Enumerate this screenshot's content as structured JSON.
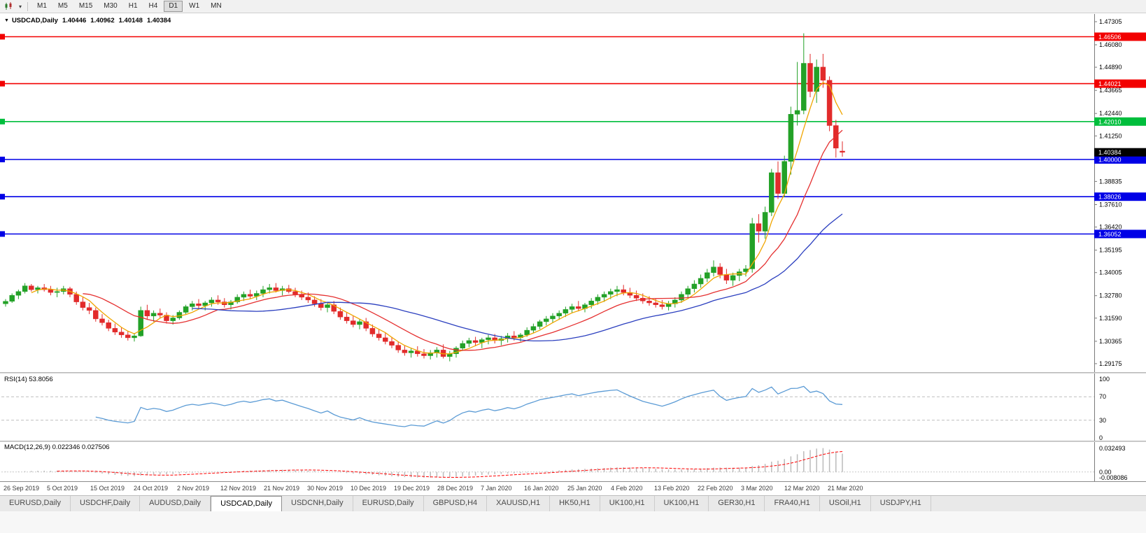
{
  "toolbar": {
    "chart_type_icon": "candles",
    "dropdown_icon": "▾",
    "timeframes": [
      "M1",
      "M5",
      "M15",
      "M30",
      "H1",
      "H4",
      "D1",
      "W1",
      "MN"
    ],
    "active_timeframe": "D1"
  },
  "chart": {
    "menu_icon": "▼",
    "title": "USDCAD,Daily",
    "open": "1.40446",
    "high": "1.40962",
    "low": "1.40148",
    "close": "1.40384",
    "axis_labels": [
      "1.47305",
      "1.46080",
      "1.44890",
      "1.43665",
      "1.42440",
      "1.41250",
      "1.38835",
      "1.37610",
      "1.36420",
      "1.35195",
      "1.34005",
      "1.32780",
      "1.31590",
      "1.30365",
      "1.29175"
    ],
    "hlines": [
      {
        "price": 1.46506,
        "label": "1.46506",
        "color": "#F20000"
      },
      {
        "price": 1.44021,
        "label": "1.44021",
        "color": "#F20000"
      },
      {
        "price": 1.4201,
        "label": "1.42010",
        "color": "#00BE3C"
      },
      {
        "price": 1.4,
        "label": "1.40000",
        "color": "#0000E6"
      },
      {
        "price": 1.38026,
        "label": "1.38026",
        "color": "#0000E6"
      },
      {
        "price": 1.36052,
        "label": "1.36052",
        "color": "#0000E6"
      }
    ],
    "current_price": {
      "value": 1.40384,
      "label": "1.40384",
      "bg": "#000000"
    }
  },
  "chart_data": {
    "type": "candlestick",
    "symbol": "USDCAD",
    "timeframe": "Daily",
    "y_range": [
      1.2873,
      1.4772
    ],
    "colors": {
      "up": "#23A127",
      "down": "#E22B2B"
    },
    "overlays": [
      {
        "name": "ma-fast",
        "period": 5,
        "color": "#F0A500"
      },
      {
        "name": "ma-mid",
        "period": 13,
        "color": "#E53030"
      },
      {
        "name": "ma-slow",
        "period": 30,
        "color": "#2B3FBF"
      }
    ],
    "x_labels": [
      "26 Sep 2019",
      "5 Oct 2019",
      "15 Oct 2019",
      "24 Oct 2019",
      "2 Nov 2019",
      "12 Nov 2019",
      "21 Nov 2019",
      "30 Nov 2019",
      "10 Dec 2019",
      "19 Dec 2019",
      "28 Dec 2019",
      "7 Jan 2020",
      "16 Jan 2020",
      "25 Jan 2020",
      "4 Feb 2020",
      "13 Feb 2020",
      "22 Feb 2020",
      "3 Mar 2020",
      "12 Mar 2020",
      "21 Mar 2020"
    ],
    "candles": [
      [
        1.3235,
        1.326,
        1.322,
        1.3248
      ],
      [
        1.3248,
        1.329,
        1.324,
        1.328
      ],
      [
        1.328,
        1.331,
        1.326,
        1.33
      ],
      [
        1.33,
        1.3345,
        1.329,
        1.333
      ],
      [
        1.333,
        1.334,
        1.33,
        1.331
      ],
      [
        1.331,
        1.333,
        1.329,
        1.332
      ],
      [
        1.332,
        1.334,
        1.33,
        1.331
      ],
      [
        1.331,
        1.333,
        1.328,
        1.3295
      ],
      [
        1.3295,
        1.332,
        1.327,
        1.33
      ],
      [
        1.33,
        1.333,
        1.3285,
        1.3315
      ],
      [
        1.3315,
        1.3325,
        1.327,
        1.3285
      ],
      [
        1.3285,
        1.33,
        1.323,
        1.3245
      ],
      [
        1.3245,
        1.327,
        1.32,
        1.3215
      ],
      [
        1.3215,
        1.324,
        1.318,
        1.32
      ],
      [
        1.32,
        1.3215,
        1.314,
        1.3155
      ],
      [
        1.3155,
        1.318,
        1.312,
        1.3135
      ],
      [
        1.3135,
        1.315,
        1.309,
        1.3105
      ],
      [
        1.3105,
        1.313,
        1.307,
        1.3085
      ],
      [
        1.3085,
        1.311,
        1.3055,
        1.307
      ],
      [
        1.307,
        1.309,
        1.304,
        1.3055
      ],
      [
        1.3055,
        1.308,
        1.3035,
        1.3065
      ],
      [
        1.3065,
        1.322,
        1.306,
        1.32
      ],
      [
        1.32,
        1.323,
        1.315,
        1.317
      ],
      [
        1.317,
        1.32,
        1.314,
        1.3185
      ],
      [
        1.3185,
        1.321,
        1.316,
        1.3175
      ],
      [
        1.3175,
        1.319,
        1.313,
        1.3145
      ],
      [
        1.3145,
        1.3175,
        1.3125,
        1.316
      ],
      [
        1.316,
        1.32,
        1.315,
        1.319
      ],
      [
        1.319,
        1.323,
        1.318,
        1.322
      ],
      [
        1.322,
        1.325,
        1.32,
        1.3235
      ],
      [
        1.3235,
        1.326,
        1.321,
        1.3225
      ],
      [
        1.3225,
        1.325,
        1.32,
        1.324
      ],
      [
        1.324,
        1.327,
        1.322,
        1.3255
      ],
      [
        1.3255,
        1.328,
        1.323,
        1.3245
      ],
      [
        1.3245,
        1.3265,
        1.3215,
        1.323
      ],
      [
        1.323,
        1.3255,
        1.3205,
        1.3245
      ],
      [
        1.3245,
        1.3285,
        1.3235,
        1.327
      ],
      [
        1.327,
        1.33,
        1.325,
        1.3285
      ],
      [
        1.3285,
        1.331,
        1.326,
        1.3275
      ],
      [
        1.3275,
        1.3305,
        1.3255,
        1.329
      ],
      [
        1.329,
        1.333,
        1.327,
        1.331
      ],
      [
        1.331,
        1.334,
        1.329,
        1.332
      ],
      [
        1.332,
        1.3345,
        1.3295,
        1.3305
      ],
      [
        1.3305,
        1.333,
        1.328,
        1.3315
      ],
      [
        1.3315,
        1.3335,
        1.329,
        1.33
      ],
      [
        1.33,
        1.332,
        1.327,
        1.3285
      ],
      [
        1.3285,
        1.3305,
        1.3255,
        1.327
      ],
      [
        1.327,
        1.3295,
        1.324,
        1.3255
      ],
      [
        1.3255,
        1.3275,
        1.322,
        1.3235
      ],
      [
        1.3235,
        1.326,
        1.32,
        1.3215
      ],
      [
        1.3215,
        1.3245,
        1.319,
        1.323
      ],
      [
        1.323,
        1.325,
        1.318,
        1.3195
      ],
      [
        1.3195,
        1.3215,
        1.315,
        1.3165
      ],
      [
        1.3165,
        1.319,
        1.313,
        1.3145
      ],
      [
        1.3145,
        1.317,
        1.311,
        1.3125
      ],
      [
        1.3125,
        1.3155,
        1.31,
        1.314
      ],
      [
        1.314,
        1.316,
        1.309,
        1.3105
      ],
      [
        1.3105,
        1.3125,
        1.306,
        1.3075
      ],
      [
        1.3075,
        1.31,
        1.304,
        1.3055
      ],
      [
        1.3055,
        1.308,
        1.302,
        1.3035
      ],
      [
        1.3035,
        1.306,
        1.3,
        1.3015
      ],
      [
        1.3015,
        1.3035,
        1.2975,
        1.299
      ],
      [
        1.299,
        1.3015,
        1.296,
        1.2975
      ],
      [
        1.2975,
        1.3,
        1.295,
        1.2985
      ],
      [
        1.2985,
        1.301,
        1.2955,
        1.297
      ],
      [
        1.297,
        1.2995,
        1.2945,
        1.296
      ],
      [
        1.296,
        1.299,
        1.294,
        1.2975
      ],
      [
        1.2975,
        1.3005,
        1.295,
        1.299
      ],
      [
        1.299,
        1.302,
        1.2945,
        1.2955
      ],
      [
        1.2955,
        1.2985,
        1.293,
        1.297
      ],
      [
        1.297,
        1.301,
        1.295,
        1.3
      ],
      [
        1.3,
        1.304,
        1.2985,
        1.3025
      ],
      [
        1.3025,
        1.3055,
        1.3005,
        1.304
      ],
      [
        1.304,
        1.306,
        1.301,
        1.303
      ],
      [
        1.303,
        1.3055,
        1.3,
        1.3045
      ],
      [
        1.3045,
        1.307,
        1.302,
        1.3055
      ],
      [
        1.3055,
        1.3075,
        1.3025,
        1.304
      ],
      [
        1.304,
        1.3065,
        1.3015,
        1.305
      ],
      [
        1.305,
        1.308,
        1.303,
        1.3065
      ],
      [
        1.3065,
        1.309,
        1.304,
        1.3055
      ],
      [
        1.3055,
        1.308,
        1.3035,
        1.307
      ],
      [
        1.307,
        1.311,
        1.306,
        1.3095
      ],
      [
        1.3095,
        1.313,
        1.308,
        1.3115
      ],
      [
        1.3115,
        1.315,
        1.31,
        1.314
      ],
      [
        1.314,
        1.317,
        1.312,
        1.3155
      ],
      [
        1.3155,
        1.3185,
        1.3135,
        1.317
      ],
      [
        1.317,
        1.32,
        1.315,
        1.3185
      ],
      [
        1.3185,
        1.322,
        1.3165,
        1.3205
      ],
      [
        1.3205,
        1.3235,
        1.3185,
        1.322
      ],
      [
        1.322,
        1.325,
        1.3195,
        1.321
      ],
      [
        1.321,
        1.324,
        1.319,
        1.323
      ],
      [
        1.323,
        1.3265,
        1.321,
        1.325
      ],
      [
        1.325,
        1.3285,
        1.323,
        1.327
      ],
      [
        1.327,
        1.33,
        1.3245,
        1.3285
      ],
      [
        1.3285,
        1.3315,
        1.326,
        1.33
      ],
      [
        1.33,
        1.333,
        1.3275,
        1.331
      ],
      [
        1.331,
        1.3335,
        1.328,
        1.3295
      ],
      [
        1.3295,
        1.332,
        1.3265,
        1.328
      ],
      [
        1.328,
        1.3305,
        1.325,
        1.3265
      ],
      [
        1.3265,
        1.329,
        1.3235,
        1.325
      ],
      [
        1.325,
        1.3275,
        1.3225,
        1.324
      ],
      [
        1.324,
        1.326,
        1.3215,
        1.323
      ],
      [
        1.323,
        1.3255,
        1.3205,
        1.322
      ],
      [
        1.322,
        1.325,
        1.32,
        1.3235
      ],
      [
        1.3235,
        1.327,
        1.3215,
        1.3255
      ],
      [
        1.3255,
        1.33,
        1.324,
        1.3285
      ],
      [
        1.3285,
        1.333,
        1.3265,
        1.3315
      ],
      [
        1.3315,
        1.336,
        1.3295,
        1.334
      ],
      [
        1.334,
        1.339,
        1.332,
        1.337
      ],
      [
        1.337,
        1.342,
        1.335,
        1.34
      ],
      [
        1.34,
        1.3465,
        1.338,
        1.343
      ],
      [
        1.343,
        1.345,
        1.337,
        1.339
      ],
      [
        1.339,
        1.342,
        1.334,
        1.336
      ],
      [
        1.336,
        1.34,
        1.333,
        1.3385
      ],
      [
        1.3385,
        1.342,
        1.3355,
        1.3405
      ],
      [
        1.3405,
        1.344,
        1.338,
        1.342
      ],
      [
        1.342,
        1.369,
        1.34,
        1.366
      ],
      [
        1.366,
        1.371,
        1.356,
        1.362
      ],
      [
        1.362,
        1.375,
        1.358,
        1.372
      ],
      [
        1.372,
        1.395,
        1.37,
        1.393
      ],
      [
        1.393,
        1.399,
        1.379,
        1.382
      ],
      [
        1.382,
        1.402,
        1.38,
        1.399
      ],
      [
        1.399,
        1.428,
        1.392,
        1.424
      ],
      [
        1.424,
        1.4517,
        1.418,
        1.426
      ],
      [
        1.426,
        1.4669,
        1.424,
        1.451
      ],
      [
        1.451,
        1.456,
        1.433,
        1.436
      ],
      [
        1.436,
        1.453,
        1.43,
        1.449
      ],
      [
        1.449,
        1.456,
        1.438,
        1.442
      ],
      [
        1.442,
        1.444,
        1.415,
        1.418
      ],
      [
        1.418,
        1.421,
        1.401,
        1.406
      ],
      [
        1.40446,
        1.40962,
        1.40148,
        1.40384
      ]
    ]
  },
  "rsi": {
    "label": "RSI(14) 53.8056",
    "period": 14,
    "value": "53.8056",
    "levels": [
      "100",
      "70",
      "30",
      "0"
    ],
    "dashed_levels": [
      70,
      30
    ],
    "color": "#5B9BD5"
  },
  "macd": {
    "label": "MACD(12,26,9) 0.022346 0.027506",
    "macd_value": "0.022346",
    "signal_value": "0.027506",
    "axis_labels": [
      "0.032493",
      "0.00",
      "-0.008086"
    ],
    "histogram_color": "#BBBBBB",
    "signal_color": "#FF0000"
  },
  "tabs": {
    "items": [
      "EURUSD,Daily",
      "USDCHF,Daily",
      "AUDUSD,Daily",
      "USDCAD,Daily",
      "USDCNH,Daily",
      "EURUSD,Daily",
      "GBPUSD,H4",
      "XAUUSD,H1",
      "HK50,H1",
      "UK100,H1",
      "UK100,H1",
      "GER30,H1",
      "FRA40,H1",
      "USOil,H1",
      "USDJPY,H1"
    ],
    "active_index": 3
  }
}
